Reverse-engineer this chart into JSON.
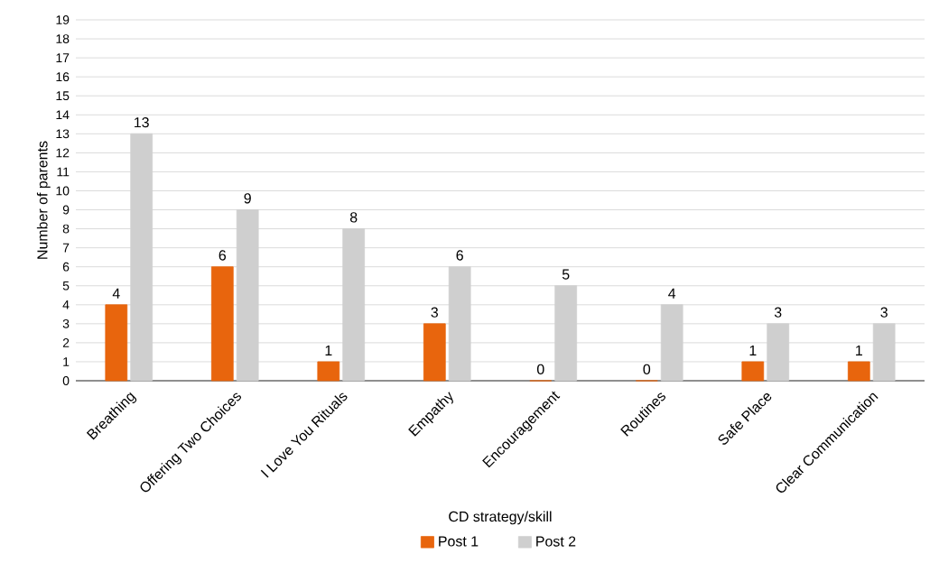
{
  "chart_data": {
    "type": "bar",
    "xlabel": "CD strategy/skill",
    "ylabel": "Number of parents",
    "categories": [
      "Breathing",
      "Offering Two Choices",
      "I Love You Rituals",
      "Empathy",
      "Encouragement",
      "Routines",
      "Safe Place",
      "Clear Communication"
    ],
    "series": [
      {
        "name": "Post 1",
        "color": "#e8650d",
        "values": [
          4,
          6,
          1,
          3,
          0,
          0,
          1,
          1
        ]
      },
      {
        "name": "Post 2",
        "color": "#cfcfcf",
        "values": [
          13,
          9,
          8,
          6,
          5,
          4,
          3,
          3
        ]
      }
    ],
    "ylim": [
      0,
      19
    ],
    "yticks": [
      0,
      1,
      2,
      3,
      4,
      5,
      6,
      7,
      8,
      9,
      10,
      11,
      12,
      13,
      14,
      15,
      16,
      17,
      18,
      19
    ],
    "grid": "y",
    "legend": "bottom",
    "data_labels": true
  }
}
